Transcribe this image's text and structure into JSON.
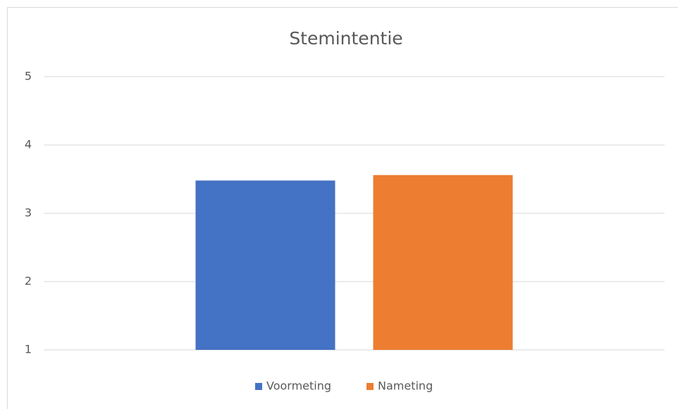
{
  "chart_data": {
    "type": "bar",
    "title": "Stemintentie",
    "categories": [
      null
    ],
    "series": [
      {
        "name": "Voormeting",
        "color": "#4472c4",
        "values": [
          3.48
        ]
      },
      {
        "name": "Nameting",
        "color": "#ed7d31",
        "values": [
          3.56
        ]
      }
    ],
    "ylim": [
      1,
      5
    ],
    "yticks": [
      1,
      2,
      3,
      4,
      5
    ],
    "grid": true,
    "legend": "bottom"
  }
}
